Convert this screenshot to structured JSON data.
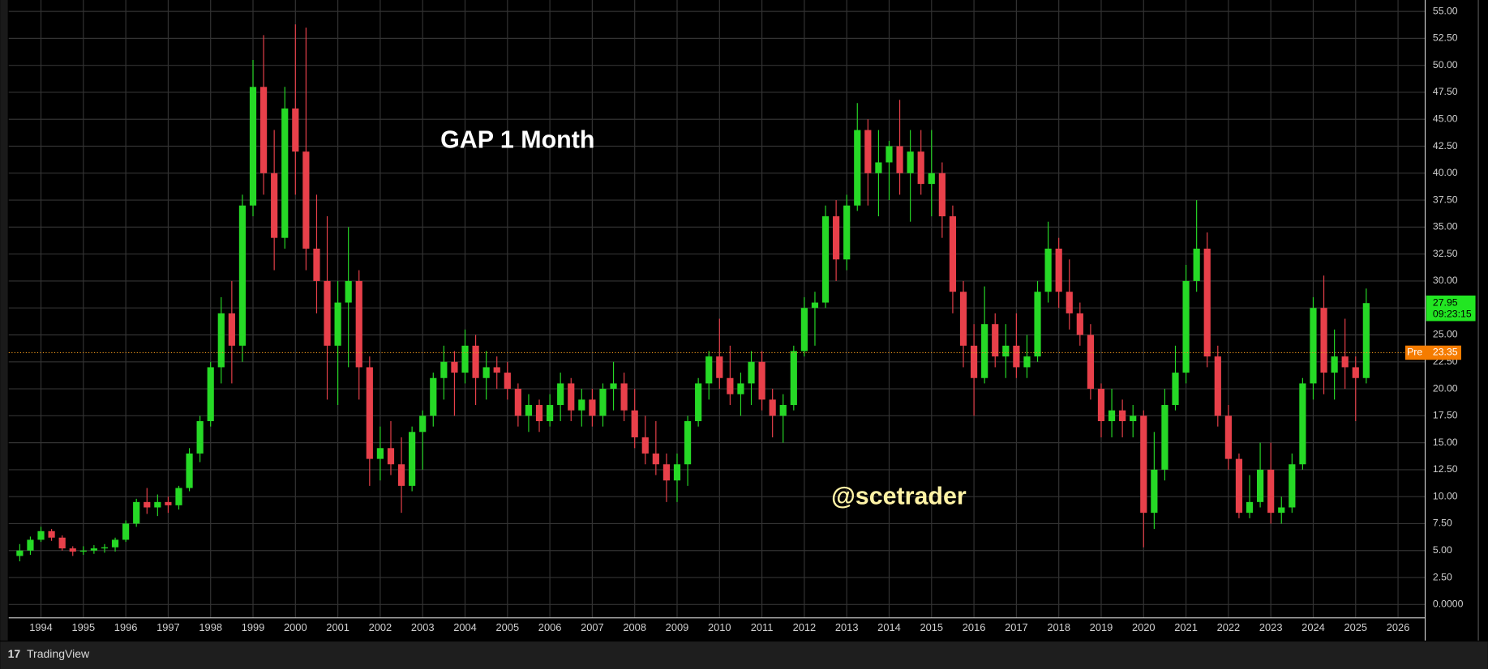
{
  "chart_data": {
    "type": "candlestick",
    "title": "GAP 1 Month",
    "watermark": "@scetrader",
    "brand": "TradingView",
    "up_color": "#26d926",
    "down_color": "#e8404a",
    "grid": true,
    "x": [
      1993.5,
      1993.75,
      1994,
      1994.25,
      1994.5,
      1994.75,
      1995,
      1995.25,
      1995.5,
      1995.75,
      1996,
      1996.25,
      1996.5,
      1996.75,
      1997,
      1997.25,
      1997.5,
      1997.75,
      1998,
      1998.25,
      1998.5,
      1998.75,
      1999,
      1999.25,
      1999.5,
      1999.75,
      2000,
      2000.25,
      2000.5,
      2000.75,
      2001,
      2001.25,
      2001.5,
      2001.75,
      2002,
      2002.25,
      2002.5,
      2002.75,
      2003,
      2003.25,
      2003.5,
      2003.75,
      2004,
      2004.25,
      2004.5,
      2004.75,
      2005,
      2005.25,
      2005.5,
      2005.75,
      2006,
      2006.25,
      2006.5,
      2006.75,
      2007,
      2007.25,
      2007.5,
      2007.75,
      2008,
      2008.25,
      2008.5,
      2008.75,
      2009,
      2009.25,
      2009.5,
      2009.75,
      2010,
      2010.25,
      2010.5,
      2010.75,
      2011,
      2011.25,
      2011.5,
      2011.75,
      2012,
      2012.25,
      2012.5,
      2012.75,
      2013,
      2013.25,
      2013.5,
      2013.75,
      2014,
      2014.25,
      2014.5,
      2014.75,
      2015,
      2015.25,
      2015.5,
      2015.75,
      2016,
      2016.25,
      2016.5,
      2016.75,
      2017,
      2017.25,
      2017.5,
      2017.75,
      2018,
      2018.25,
      2018.5,
      2018.75,
      2019,
      2019.25,
      2019.5,
      2019.75,
      2020,
      2020.25,
      2020.5,
      2020.75,
      2021,
      2021.25,
      2021.5,
      2021.75,
      2022,
      2022.25,
      2022.5,
      2022.75,
      2023,
      2023.25,
      2023.5,
      2023.75,
      2024,
      2024.25,
      2024.5,
      2024.75,
      2025,
      2025.25
    ],
    "open": [
      4.5,
      5.0,
      6.0,
      6.8,
      6.2,
      5.2,
      4.9,
      5.0,
      5.2,
      5.3,
      6.0,
      7.5,
      9.5,
      9.0,
      9.5,
      9.2,
      10.8,
      14.0,
      17,
      22,
      27,
      24,
      37,
      48,
      40,
      34,
      46,
      42,
      33,
      30,
      24,
      28,
      30,
      22,
      13.5,
      14.5,
      13,
      11,
      16,
      17.5,
      21,
      22.5,
      21.5,
      24,
      21,
      22,
      21.5,
      20,
      17.5,
      18.5,
      17,
      18.5,
      20.5,
      18,
      19,
      17.5,
      20,
      20.5,
      18,
      15.5,
      14,
      13,
      11.5,
      13,
      17,
      20.5,
      23,
      21,
      19.5,
      20.5,
      22.5,
      19,
      17.5,
      18.5,
      23.5,
      27.5,
      28,
      36,
      32,
      37,
      44,
      40,
      41,
      42.5,
      40,
      42,
      39,
      40,
      36,
      29,
      24,
      21,
      26,
      23,
      24,
      22,
      23,
      29,
      33,
      29,
      27,
      25,
      20,
      17,
      18,
      17,
      17.5,
      8.5,
      12.5,
      18.5,
      21.5,
      30,
      33,
      23,
      17.5,
      13.5,
      8.5,
      9.5,
      12.5,
      8.5,
      9,
      13,
      20.5,
      27.5,
      21.5,
      23,
      22,
      21
    ],
    "high": [
      5.6,
      6.3,
      7.2,
      7.0,
      6.4,
      5.4,
      5.4,
      5.5,
      5.6,
      6.2,
      7.8,
      9.8,
      10.8,
      10.2,
      10.0,
      11.0,
      14.5,
      17.5,
      22.5,
      28.5,
      30,
      38,
      50.5,
      52.8,
      44,
      48,
      53.8,
      53.5,
      38,
      36,
      30,
      35,
      31,
      23,
      16.5,
      17,
      15.5,
      16.5,
      18,
      21.5,
      24,
      23.5,
      25.5,
      25,
      23.5,
      23,
      22.5,
      20.5,
      19.5,
      19,
      19.5,
      21.5,
      21,
      20,
      20,
      20.5,
      22.5,
      21.5,
      20,
      17.5,
      17,
      14,
      14,
      17.5,
      21,
      23.5,
      26.5,
      24,
      21.5,
      23.5,
      23.5,
      20,
      19.5,
      24,
      28.5,
      29,
      37,
      37.5,
      38,
      46.5,
      45,
      44,
      43,
      46.8,
      44,
      44,
      44,
      41,
      37,
      30,
      26,
      29.5,
      27,
      26,
      27,
      25,
      30,
      35.5,
      34,
      32,
      28,
      26,
      20.5,
      20,
      19,
      18.5,
      18,
      16,
      20,
      24,
      31.5,
      37.5,
      34.5,
      24,
      18.5,
      14,
      12,
      15,
      15,
      10,
      14,
      21,
      28.5,
      30.5,
      25.5,
      26.5,
      23,
      29.3
    ],
    "low": [
      4.0,
      4.6,
      5.8,
      5.9,
      5.0,
      4.5,
      4.6,
      4.7,
      4.8,
      4.9,
      5.8,
      7.2,
      8.4,
      8.2,
      8.5,
      8.8,
      10.5,
      13.2,
      16.5,
      20.5,
      20.5,
      22.5,
      36,
      38,
      31,
      33,
      38,
      31,
      27,
      19,
      18.5,
      22,
      19,
      11,
      11.5,
      12,
      8.5,
      10.5,
      12.5,
      16.5,
      19,
      17.5,
      20.5,
      18.5,
      19,
      20,
      19,
      16.5,
      16,
      16,
      16.5,
      17,
      17,
      16.5,
      16.5,
      16.5,
      18,
      17,
      14.5,
      13,
      12,
      9.5,
      9.5,
      11,
      16.5,
      19,
      20,
      18.5,
      17.5,
      18.5,
      18,
      15.5,
      15,
      18,
      23,
      24,
      27.5,
      30,
      31,
      36.5,
      37,
      36,
      37.5,
      38,
      35.5,
      38,
      36,
      34,
      27,
      22,
      17.5,
      20.5,
      22,
      21,
      21,
      21,
      22.5,
      28,
      27.5,
      25.5,
      24,
      19,
      15.5,
      15.5,
      15.5,
      15.5,
      5.3,
      7,
      11.5,
      18,
      20.5,
      29,
      22,
      16.5,
      12.5,
      8,
      8,
      9,
      7.5,
      7.5,
      8.5,
      12.5,
      19,
      19.5,
      19,
      20,
      17,
      20.5
    ],
    "close": [
      5.0,
      6.0,
      6.8,
      6.2,
      5.2,
      4.9,
      5.0,
      5.2,
      5.3,
      6.0,
      7.5,
      9.5,
      9.0,
      9.5,
      9.2,
      10.8,
      14.0,
      17.0,
      22,
      27,
      24,
      37,
      48,
      40,
      34,
      46,
      42,
      33,
      30,
      24,
      28,
      30,
      22,
      13.5,
      14.5,
      13,
      11,
      16,
      17.5,
      21,
      22.5,
      21.5,
      24,
      21,
      22,
      21.5,
      20,
      17.5,
      18.5,
      17,
      18.5,
      20.5,
      18,
      19,
      17.5,
      20,
      20.5,
      18,
      15.5,
      14,
      13,
      11.5,
      13,
      17,
      20.5,
      23,
      21,
      19.5,
      20.5,
      22.5,
      19,
      17.5,
      18.5,
      23.5,
      27.5,
      28,
      36,
      32,
      37,
      44,
      40,
      41,
      42.5,
      40,
      42,
      39,
      40,
      36,
      29,
      24,
      21,
      26,
      23,
      24,
      22,
      23,
      29,
      33,
      29,
      27,
      25,
      20,
      17,
      18,
      17,
      17.5,
      8.5,
      12.5,
      18.5,
      21.5,
      30,
      33,
      23,
      17.5,
      13.5,
      8.5,
      9.5,
      12.5,
      8.5,
      9,
      13,
      20.5,
      27.5,
      21.5,
      23,
      22,
      21,
      27.95
    ],
    "countdown": "09:23:15",
    "premarket": {
      "label": "Pre",
      "value": 23.35
    },
    "xlim": [
      1993.24,
      2026.64
    ],
    "xticks": [
      1994,
      1995,
      1996,
      1997,
      1998,
      1999,
      2000,
      2001,
      2002,
      2003,
      2004,
      2005,
      2006,
      2007,
      2008,
      2009,
      2010,
      2011,
      2012,
      2013,
      2014,
      2015,
      2016,
      2017,
      2018,
      2019,
      2020,
      2021,
      2022,
      2023,
      2024,
      2025,
      2026
    ],
    "ylim": [
      -1.24,
      56.06
    ],
    "yticks": [
      {
        "value": 0,
        "label": "0.0000"
      },
      {
        "value": 2.5,
        "label": "2.50"
      },
      {
        "value": 5,
        "label": "5.00"
      },
      {
        "value": 7.5,
        "label": "7.50"
      },
      {
        "value": 10,
        "label": "10.00"
      },
      {
        "value": 12.5,
        "label": "12.50"
      },
      {
        "value": 15,
        "label": "15.00"
      },
      {
        "value": 17.5,
        "label": "17.50"
      },
      {
        "value": 20,
        "label": "20.00"
      },
      {
        "value": 22.5,
        "label": "22.50"
      },
      {
        "value": 25,
        "label": "25.00"
      },
      {
        "value": 27.5,
        "label": "27.50"
      },
      {
        "value": 30,
        "label": "30.00"
      },
      {
        "value": 32.5,
        "label": "32.50"
      },
      {
        "value": 35,
        "label": "35.00"
      },
      {
        "value": 37.5,
        "label": "37.50"
      },
      {
        "value": 40,
        "label": "40.00"
      },
      {
        "value": 42.5,
        "label": "42.50"
      },
      {
        "value": 45,
        "label": "45.00"
      },
      {
        "value": 47.5,
        "label": "47.50"
      },
      {
        "value": 50,
        "label": "50.00"
      },
      {
        "value": 52.5,
        "label": "52.50"
      },
      {
        "value": 55,
        "label": "55.00"
      }
    ]
  }
}
